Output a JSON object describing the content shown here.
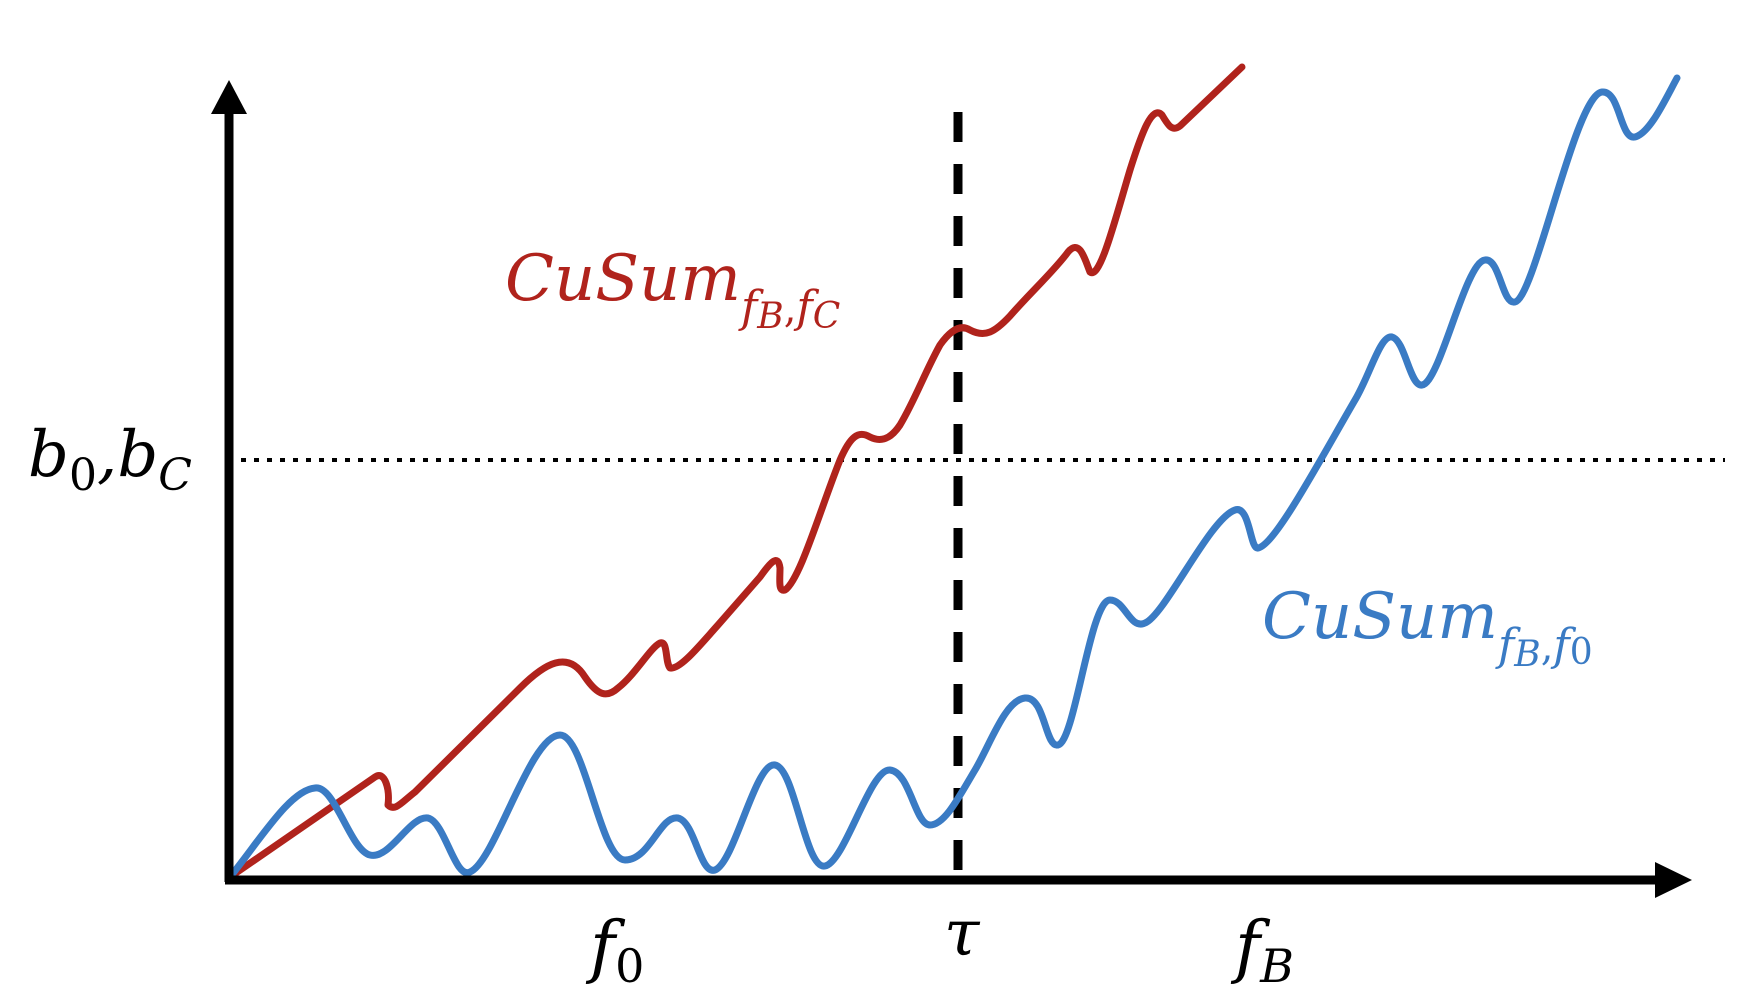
{
  "colors": {
    "axis": "#000000",
    "series_red": "#b0231c",
    "series_blue": "#3a7bc4",
    "threshold": "#000000",
    "change_point": "#000000"
  },
  "labels": {
    "threshold": {
      "main1": "b",
      "sub1": "0",
      "sep": ",",
      "main2": "b",
      "sub2": "C"
    },
    "red_series": {
      "main": "CuSum",
      "sub": "f",
      "sub_a": "B",
      "sub_sep": ",",
      "sub_b": "f",
      "sub_c": "C"
    },
    "blue_series": {
      "main": "CuSum",
      "sub": "f",
      "sub_a": "B",
      "sub_sep": ",",
      "sub_b": "f",
      "sub_c": "0"
    },
    "x_left": {
      "main": "f",
      "sub": "0"
    },
    "x_mid": {
      "main": "τ"
    },
    "x_right": {
      "main": "f",
      "sub": "B"
    }
  }
}
